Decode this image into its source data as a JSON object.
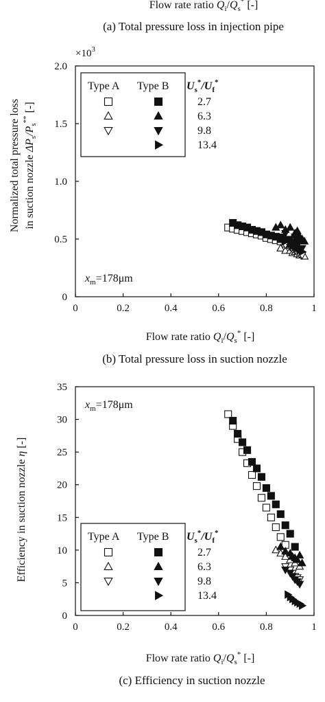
{
  "top_fragment": {
    "xlabel_text": "Flow rate ratio ",
    "q_i_base": "Q",
    "q_i_sub": "i",
    "slash": "/",
    "q_s_base": "Q",
    "q_s_sub": "s",
    "q_s_sup": "*",
    "unit": "  [-]",
    "caption": "(a) Total pressure loss in injection pipe"
  },
  "chart_data": [
    {
      "id": "b",
      "type": "scatter",
      "caption": "(b) Total pressure loss in suction nozzle",
      "xlabel": {
        "text": "Flow rate ratio ",
        "q_i_base": "Q",
        "q_i_sub": "i",
        "slash": "/",
        "q_s_base": "Q",
        "q_s_sub": "s",
        "q_s_sup": "*",
        "unit": "  [-]"
      },
      "ylabel": {
        "line1": "Normalized total pressure loss",
        "line2_prefix": "in suction nozzle ",
        "delta": "ΔP",
        "delta_sub": "s",
        "slash": "/P",
        "p_sub": "s",
        "p_sup": "**",
        "unit": " [-]"
      },
      "multiplier": {
        "base": "×10",
        "exp": "3"
      },
      "annotation": {
        "x_base": "x",
        "x_sub": "m",
        "value": "=178μm"
      },
      "xlim": [
        0,
        1
      ],
      "ylim": [
        0,
        2
      ],
      "xticks": [
        "0",
        "0.2",
        "0.4",
        "0.6",
        "0.8",
        "1"
      ],
      "yticks": [
        "0",
        "0.5",
        "1.0",
        "1.5",
        "2.0"
      ],
      "legend": {
        "position": "top-left",
        "header_a": "Type A",
        "header_b": "Type B",
        "header_u_base": "U",
        "header_u_sub": "s",
        "header_u_sup": "*",
        "header_slash": "/U",
        "header_f_sub": "f",
        "header_f_sup": "*",
        "rows": [
          {
            "type_a_marker": "open-square",
            "type_b_marker": "filled-square",
            "value": "2.7"
          },
          {
            "type_a_marker": "open-triangle-up",
            "type_b_marker": "filled-triangle-up",
            "value": "6.3"
          },
          {
            "type_a_marker": "open-triangle-down",
            "type_b_marker": "filled-triangle-down",
            "value": "9.8"
          },
          {
            "type_a_marker": "",
            "type_b_marker": "filled-triangle-right",
            "value": "13.4"
          }
        ]
      },
      "series": [
        {
          "marker": "open-square",
          "x": [
            0.64,
            0.66,
            0.68,
            0.7,
            0.72,
            0.74,
            0.76,
            0.78,
            0.8,
            0.82,
            0.84,
            0.86,
            0.88,
            0.9,
            0.92,
            0.94
          ],
          "y": [
            0.6,
            0.59,
            0.58,
            0.57,
            0.56,
            0.55,
            0.54,
            0.53,
            0.51,
            0.5,
            0.49,
            0.48,
            0.46,
            0.45,
            0.43,
            0.41
          ]
        },
        {
          "marker": "filled-square",
          "x": [
            0.66,
            0.68,
            0.7,
            0.72,
            0.74,
            0.76,
            0.78,
            0.8,
            0.82,
            0.84,
            0.86,
            0.88,
            0.9,
            0.92
          ],
          "y": [
            0.64,
            0.62,
            0.61,
            0.6,
            0.58,
            0.57,
            0.56,
            0.54,
            0.53,
            0.52,
            0.5,
            0.49,
            0.47,
            0.46
          ]
        },
        {
          "marker": "open-triangle-up",
          "x": [
            0.86,
            0.88,
            0.9,
            0.91,
            0.92,
            0.93,
            0.94,
            0.95,
            0.96
          ],
          "y": [
            0.42,
            0.4,
            0.4,
            0.38,
            0.39,
            0.37,
            0.36,
            0.37,
            0.35
          ]
        },
        {
          "marker": "filled-triangle-up",
          "x": [
            0.84,
            0.86,
            0.88,
            0.9,
            0.92,
            0.93,
            0.94,
            0.95,
            0.96
          ],
          "y": [
            0.6,
            0.62,
            0.58,
            0.6,
            0.55,
            0.57,
            0.52,
            0.5,
            0.48
          ]
        },
        {
          "marker": "open-triangle-down",
          "x": [
            0.88,
            0.9,
            0.91,
            0.92,
            0.93,
            0.94,
            0.95
          ],
          "y": [
            0.45,
            0.43,
            0.41,
            0.4,
            0.38,
            0.37,
            0.36
          ]
        },
        {
          "marker": "filled-triangle-down",
          "x": [
            0.86,
            0.88,
            0.9,
            0.91,
            0.92,
            0.93,
            0.94,
            0.95
          ],
          "y": [
            0.52,
            0.55,
            0.5,
            0.47,
            0.52,
            0.45,
            0.48,
            0.42
          ]
        },
        {
          "marker": "filled-triangle-right",
          "x": [
            0.88,
            0.9,
            0.91,
            0.92,
            0.93,
            0.94,
            0.95
          ],
          "y": [
            0.48,
            0.46,
            0.44,
            0.43,
            0.42,
            0.4,
            0.39
          ]
        }
      ]
    },
    {
      "id": "c",
      "type": "scatter",
      "caption": "(c) Efficiency in suction nozzle",
      "xlabel": {
        "text": "Flow rate ratio ",
        "q_i_base": "Q",
        "q_i_sub": "i",
        "slash": "/",
        "q_s_base": "Q",
        "q_s_sub": "s",
        "q_s_sup": "*",
        "unit": "  [-]"
      },
      "ylabel": {
        "text": "Efficiency in suction nozzle ",
        "symbol": "η",
        "unit": " [-]"
      },
      "annotation": {
        "x_base": "x",
        "x_sub": "m",
        "value": "=178μm"
      },
      "xlim": [
        0,
        1
      ],
      "ylim": [
        0,
        35
      ],
      "xticks": [
        "0",
        "0.2",
        "0.4",
        "0.6",
        "0.8",
        "1"
      ],
      "yticks": [
        "0",
        "5",
        "10",
        "15",
        "20",
        "25",
        "30",
        "35"
      ],
      "legend": {
        "position": "bottom-left",
        "header_a": "Type A",
        "header_b": "Type B",
        "header_u_base": "U",
        "header_u_sub": "s",
        "header_u_sup": "*",
        "header_slash": "/U",
        "header_f_sub": "f",
        "header_f_sup": "*",
        "rows": [
          {
            "type_a_marker": "open-square",
            "type_b_marker": "filled-square",
            "value": "2.7"
          },
          {
            "type_a_marker": "open-triangle-up",
            "type_b_marker": "filled-triangle-up",
            "value": "6.3"
          },
          {
            "type_a_marker": "open-triangle-down",
            "type_b_marker": "filled-triangle-down",
            "value": "9.8"
          },
          {
            "type_a_marker": "",
            "type_b_marker": "filled-triangle-right",
            "value": "13.4"
          }
        ]
      },
      "series": [
        {
          "marker": "open-square",
          "x": [
            0.64,
            0.66,
            0.68,
            0.7,
            0.72,
            0.74,
            0.76,
            0.78,
            0.8,
            0.82,
            0.84,
            0.86,
            0.88
          ],
          "y": [
            30.8,
            29.0,
            27.0,
            25.0,
            23.3,
            21.5,
            19.8,
            18.0,
            16.5,
            15.0,
            13.5,
            12.0,
            10.8
          ]
        },
        {
          "marker": "filled-square",
          "x": [
            0.66,
            0.68,
            0.7,
            0.72,
            0.74,
            0.76,
            0.78,
            0.8,
            0.82,
            0.84,
            0.86,
            0.88,
            0.9,
            0.92
          ],
          "y": [
            29.8,
            27.8,
            26.5,
            25.3,
            23.5,
            22.5,
            21.2,
            19.5,
            18.3,
            17.0,
            15.5,
            13.8,
            12.5,
            10.5
          ]
        },
        {
          "marker": "open-triangle-up",
          "x": [
            0.84,
            0.86,
            0.88,
            0.9,
            0.92,
            0.94
          ],
          "y": [
            10.0,
            9.5,
            9.0,
            8.5,
            8.0,
            7.5
          ]
        },
        {
          "marker": "filled-triangle-up",
          "x": [
            0.86,
            0.88,
            0.9,
            0.91,
            0.92,
            0.93,
            0.94,
            0.95
          ],
          "y": [
            10.5,
            9.8,
            9.5,
            9.0,
            8.8,
            8.5,
            9.2,
            8.0
          ]
        },
        {
          "marker": "open-triangle-down",
          "x": [
            0.88,
            0.9,
            0.91,
            0.92,
            0.93,
            0.94
          ],
          "y": [
            7.5,
            7.0,
            6.5,
            6.0,
            5.8,
            5.5
          ]
        },
        {
          "marker": "filled-triangle-down",
          "x": [
            0.88,
            0.9,
            0.91,
            0.92,
            0.93,
            0.94
          ],
          "y": [
            7.0,
            6.5,
            6.0,
            5.5,
            5.2,
            4.8
          ]
        },
        {
          "marker": "filled-triangle-right",
          "x": [
            0.89,
            0.9,
            0.91,
            0.92,
            0.93,
            0.94,
            0.95
          ],
          "y": [
            3.2,
            2.8,
            2.5,
            2.2,
            2.0,
            1.8,
            1.5
          ]
        }
      ]
    }
  ]
}
